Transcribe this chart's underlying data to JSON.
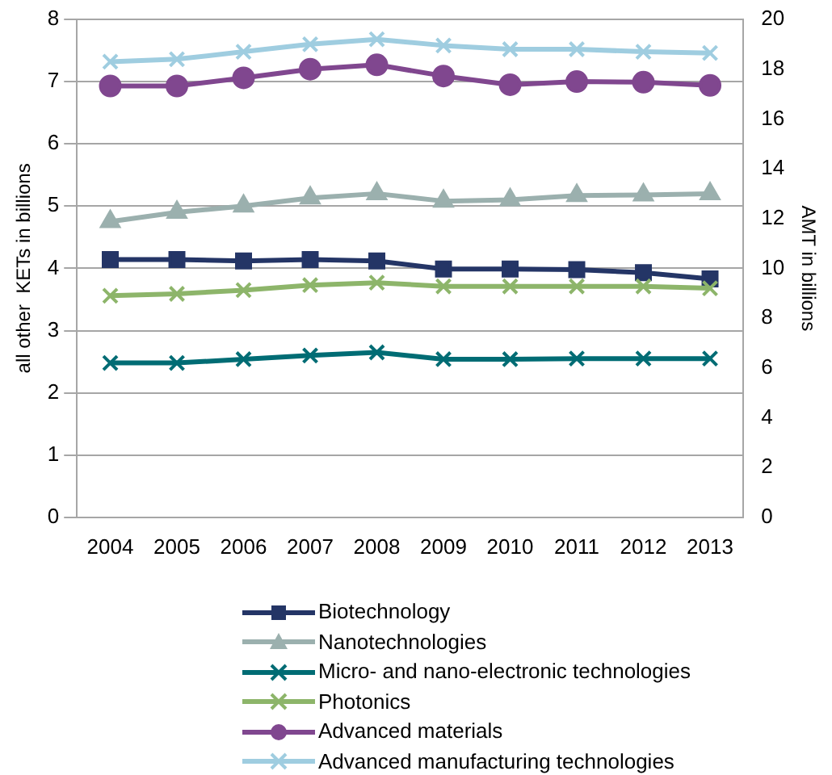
{
  "chart_data": {
    "type": "line",
    "ylabel": "all other  KETs in billions",
    "y2label": "AMT in billions",
    "categories": [
      "2004",
      "2005",
      "2006",
      "2007",
      "2008",
      "2009",
      "2010",
      "2011",
      "2012",
      "2013"
    ],
    "series": [
      {
        "name": "Biotechnology",
        "color": "#243566",
        "marker": "square",
        "values": [
          4.14,
          4.14,
          4.12,
          4.14,
          4.12,
          3.99,
          3.99,
          3.98,
          3.93,
          3.83
        ]
      },
      {
        "name": "Nanotechnologies",
        "color": "#9bb0ae",
        "marker": "triangle",
        "values": [
          4.75,
          4.9,
          5.0,
          5.13,
          5.2,
          5.08,
          5.1,
          5.17,
          5.18,
          5.2
        ]
      },
      {
        "name": "Micro- and nano-electronic technologies",
        "color": "#006c74",
        "marker": "cross",
        "values": [
          2.48,
          2.48,
          2.54,
          2.6,
          2.65,
          2.54,
          2.54,
          2.55,
          2.55,
          2.55
        ]
      },
      {
        "name": "Photonics",
        "color": "#8db56a",
        "marker": "cross",
        "values": [
          3.56,
          3.59,
          3.65,
          3.73,
          3.77,
          3.71,
          3.71,
          3.71,
          3.71,
          3.68
        ]
      },
      {
        "name": "Advanced materials",
        "color": "#80478f",
        "marker": "circle",
        "values": [
          6.93,
          6.93,
          7.06,
          7.2,
          7.27,
          7.09,
          6.95,
          7.0,
          6.99,
          6.94
        ]
      },
      {
        "name": "Advanced manufacturing technologies",
        "color": "#9fcde0",
        "marker": "cross",
        "axis": "y2",
        "values": [
          18.3,
          18.4,
          18.7,
          19.0,
          19.2,
          18.95,
          18.8,
          18.8,
          18.7,
          18.65
        ]
      }
    ],
    "ylim": [
      0,
      8
    ],
    "yticks": [
      0,
      1,
      2,
      3,
      4,
      5,
      6,
      7,
      8
    ],
    "y2lim": [
      0,
      20
    ],
    "y2ticks": [
      0,
      2,
      4,
      6,
      8,
      10,
      12,
      14,
      16,
      18,
      20
    ],
    "grid": "y",
    "legend": "bottom"
  }
}
